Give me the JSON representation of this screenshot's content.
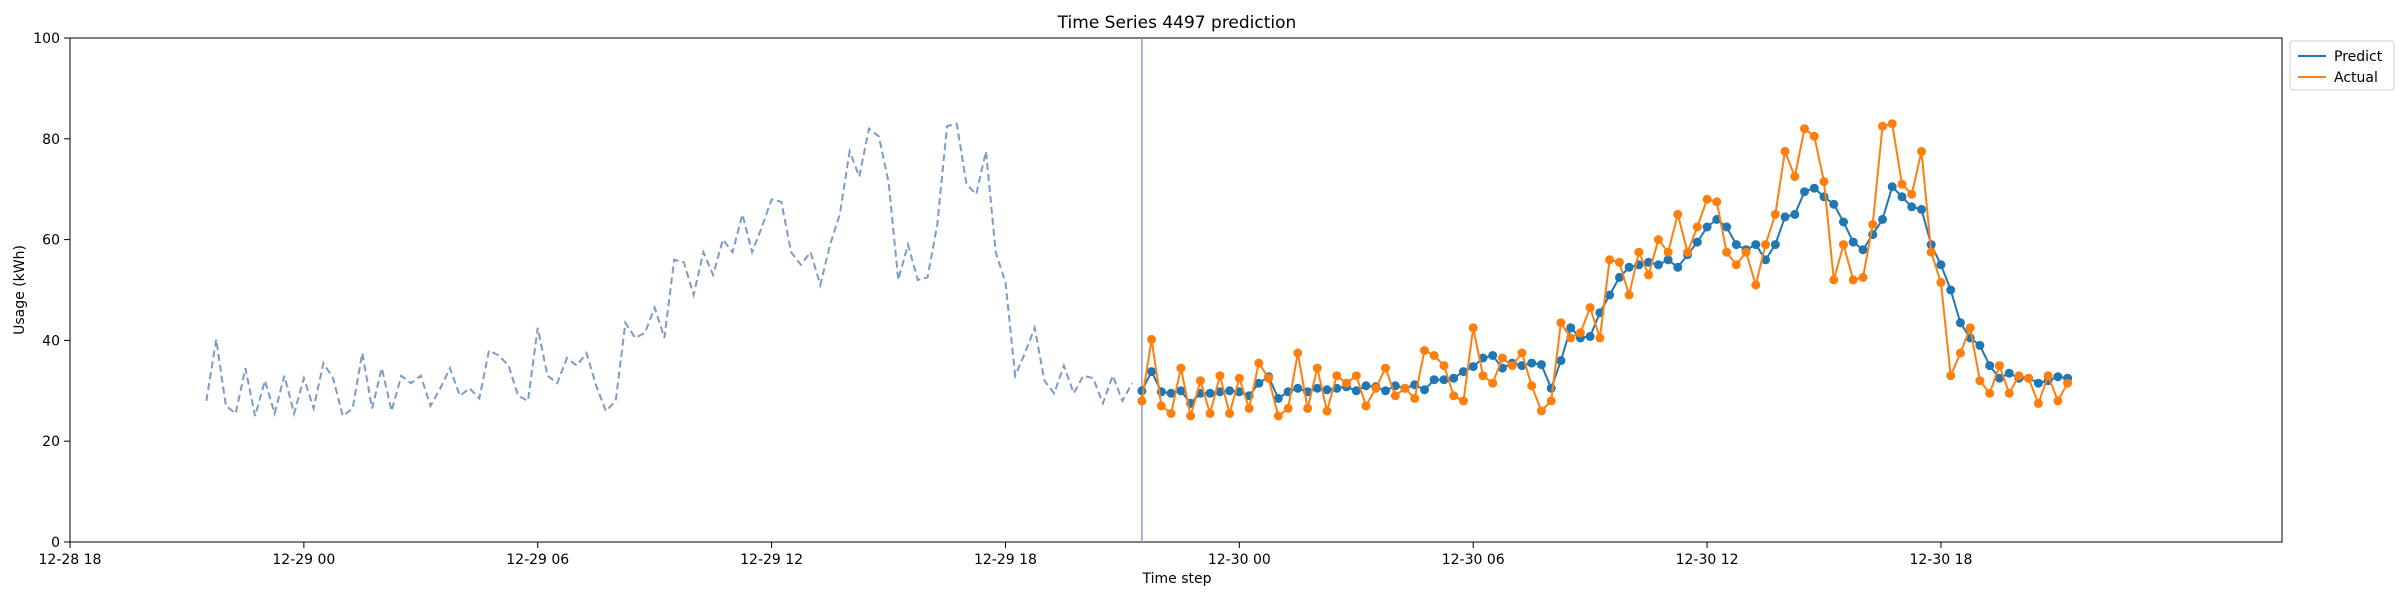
{
  "chart_data": {
    "type": "line",
    "title": "Time Series 4497 prediction",
    "xlabel": "Time step",
    "ylabel": "Usage (kWh)",
    "ylim": [
      0,
      100
    ],
    "yticks": [
      0,
      20,
      40,
      60,
      80,
      100
    ],
    "xlim_hours": [
      -6.0,
      50.75
    ],
    "xticks": [
      {
        "label": "12-28 18",
        "hour": -6
      },
      {
        "label": "12-29 00",
        "hour": 0
      },
      {
        "label": "12-29 06",
        "hour": 6
      },
      {
        "label": "12-29 12",
        "hour": 12
      },
      {
        "label": "12-29 18",
        "hour": 18
      },
      {
        "label": "12-30 00",
        "hour": 24
      },
      {
        "label": "12-30 06",
        "hour": 30
      },
      {
        "label": "12-30 12",
        "hour": 36
      },
      {
        "label": "12-30 18",
        "hour": 42
      }
    ],
    "history_start_hour": -2.5,
    "step_hours": 0.25,
    "history": [
      28.0,
      40.2,
      27.0,
      25.5,
      34.5,
      25.0,
      32.0,
      25.5,
      33.0,
      25.5,
      32.5,
      26.5,
      35.5,
      32.5,
      25.0,
      26.5,
      37.5,
      26.5,
      34.5,
      26.0,
      33.0,
      31.5,
      33.0,
      27.0,
      30.5,
      34.5,
      29.0,
      30.5,
      28.5,
      38.0,
      37.0,
      35.0,
      29.0,
      28.0,
      42.5,
      33.0,
      31.5,
      36.5,
      35.0,
      37.5,
      31.0,
      26.0,
      28.0,
      43.5,
      40.5,
      41.5,
      46.5,
      40.5,
      56.0,
      55.5,
      49.0,
      57.5,
      53.0,
      60.0,
      57.5,
      65.0,
      57.5,
      62.5,
      68.0,
      67.5,
      57.5,
      55.0,
      57.5,
      51.0,
      59.0,
      65.0,
      77.5,
      72.5,
      82.0,
      80.5,
      71.5,
      52.0,
      59.0,
      52.0,
      52.5,
      63.0,
      82.5,
      83.0,
      71.0,
      69.0,
      77.5,
      57.5,
      51.5,
      33.0,
      37.5,
      42.5,
      32.0,
      29.5,
      35.0,
      29.5,
      33.0,
      32.5,
      27.5,
      33.0,
      28.0,
      31.5
    ],
    "forecast_start_hour": 21.5,
    "forecast_start_marker_hour": 21.5,
    "series": [
      {
        "name": "Predict",
        "color": "#1f77b4",
        "values": [
          30.0,
          33.8,
          29.8,
          29.5,
          30.0,
          27.5,
          29.5,
          29.5,
          29.8,
          30.0,
          29.8,
          29.0,
          31.5,
          32.8,
          28.5,
          29.8,
          30.5,
          29.8,
          30.5,
          30.2,
          30.5,
          30.8,
          30.0,
          31.0,
          30.8,
          30.0,
          31.0,
          30.5,
          31.2,
          30.2,
          32.2,
          32.2,
          32.5,
          33.8,
          34.8,
          36.5,
          37.0,
          34.5,
          35.5,
          35.0,
          35.5,
          35.2,
          30.5,
          36.0,
          42.5,
          40.5,
          40.8,
          45.5,
          49.0,
          52.5,
          54.5,
          55.0,
          55.5,
          55.0,
          56.0,
          54.5,
          57.0,
          59.5,
          62.5,
          64.0,
          62.5,
          59.0,
          58.0,
          59.0,
          56.0,
          59.0,
          64.5,
          65.0,
          69.5,
          70.2,
          68.5,
          67.0,
          63.5,
          59.5,
          58.0,
          61.0,
          64.0,
          70.5,
          68.5,
          66.5,
          66.0,
          59.0,
          55.0,
          50.0,
          43.5,
          40.5,
          39.0,
          35.0,
          32.5,
          33.5,
          32.5,
          32.5,
          31.5,
          32.0,
          32.8,
          32.5
        ]
      },
      {
        "name": "Actual",
        "color": "#ff7f0e",
        "values": [
          28.0,
          40.2,
          27.0,
          25.5,
          34.5,
          25.0,
          32.0,
          25.5,
          33.0,
          25.5,
          32.5,
          26.5,
          35.5,
          32.5,
          25.0,
          26.5,
          37.5,
          26.5,
          34.5,
          26.0,
          33.0,
          31.5,
          33.0,
          27.0,
          30.5,
          34.5,
          29.0,
          30.5,
          28.5,
          38.0,
          37.0,
          35.0,
          29.0,
          28.0,
          42.5,
          33.0,
          31.5,
          36.5,
          35.0,
          37.5,
          31.0,
          26.0,
          28.0,
          43.5,
          40.5,
          41.5,
          46.5,
          40.5,
          56.0,
          55.5,
          49.0,
          57.5,
          53.0,
          60.0,
          57.5,
          65.0,
          57.5,
          62.5,
          68.0,
          67.5,
          57.5,
          55.0,
          57.5,
          51.0,
          59.0,
          65.0,
          77.5,
          72.5,
          82.0,
          80.5,
          71.5,
          52.0,
          59.0,
          52.0,
          52.5,
          63.0,
          82.5,
          83.0,
          71.0,
          69.0,
          77.5,
          57.5,
          51.5,
          33.0,
          37.5,
          42.5,
          32.0,
          29.5,
          35.0,
          29.5,
          33.0,
          32.5,
          27.5,
          33.0,
          28.0,
          31.5
        ]
      }
    ],
    "legend": "top-right",
    "grid": false,
    "history_color": "#7a9cc6",
    "marker_line_color": "#8899cc"
  }
}
